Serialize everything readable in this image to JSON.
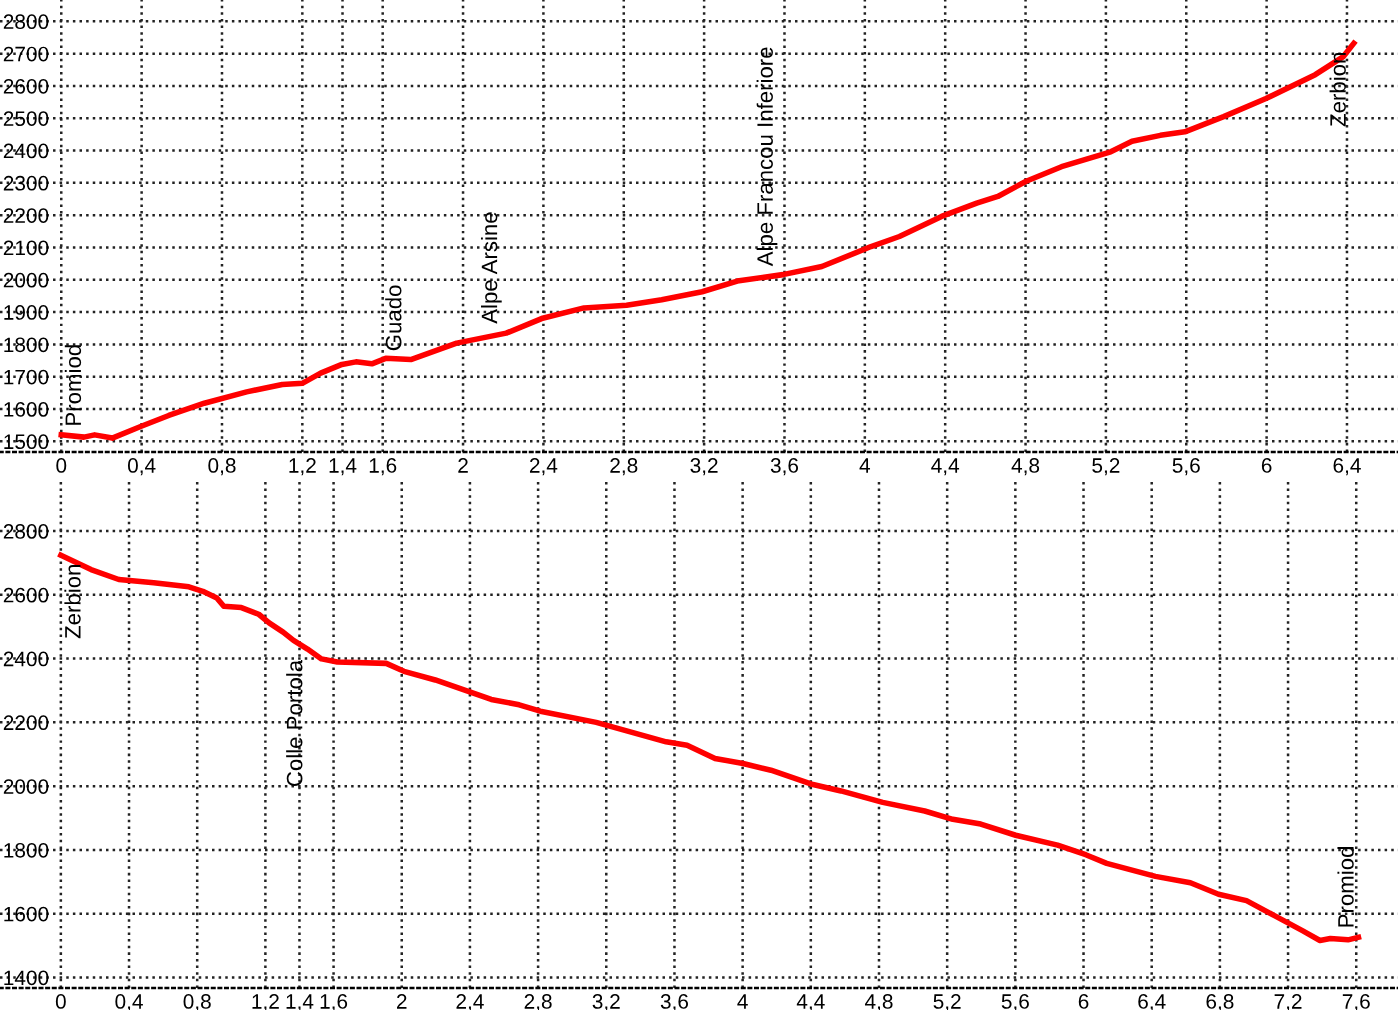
{
  "chart_data": [
    {
      "type": "line",
      "x": [
        0,
        0.113,
        0.166,
        0.254,
        0.395,
        0.535,
        0.712,
        0.923,
        1.1,
        1.202,
        1.291,
        1.397,
        1.467,
        1.546,
        1.615,
        1.74,
        1.968,
        2.215,
        2.391,
        2.602,
        2.814,
        2.989,
        3.19,
        3.365,
        3.592,
        3.786,
        4.031,
        4.172,
        4.382,
        4.557,
        4.662,
        4.803,
        4.979,
        5.224,
        5.33,
        5.471,
        5.593,
        5.786,
        5.997,
        6.242,
        6.382,
        6.434
      ],
      "series": [
        {
          "color": "#ff0000",
          "values": [
            1520,
            1513,
            1520,
            1510,
            1546,
            1580,
            1618,
            1653,
            1676,
            1680,
            1711,
            1738,
            1746,
            1740,
            1757,
            1753,
            1804,
            1835,
            1880,
            1913,
            1921,
            1938,
            1963,
            1996,
            2016,
            2041,
            2103,
            2134,
            2196,
            2237,
            2258,
            2305,
            2350,
            2396,
            2429,
            2447,
            2458,
            2505,
            2561,
            2635,
            2691,
            2732
          ]
        }
      ],
      "xlim": [
        -0.305,
        6.654
      ],
      "ylim": [
        1467,
        2866
      ],
      "xticks": [
        0,
        {
          "value": 0.4,
          "label": "0,4"
        },
        {
          "value": 0.8,
          "label": "0,8"
        },
        {
          "value": 1.2,
          "label": "1,2"
        },
        {
          "value": 1.4,
          "label": "1,4"
        },
        {
          "value": 1.6,
          "label": "1,6"
        },
        2,
        {
          "value": 2.4,
          "label": "2,4"
        },
        {
          "value": 2.8,
          "label": "2,8"
        },
        {
          "value": 3.2,
          "label": "3,2"
        },
        {
          "value": 3.6,
          "label": "3,6"
        },
        4,
        {
          "value": 4.4,
          "label": "4,4"
        },
        {
          "value": 4.8,
          "label": "4,8"
        },
        {
          "value": 5.2,
          "label": "5,2"
        },
        {
          "value": 5.6,
          "label": "5,6"
        },
        6,
        {
          "value": 6.4,
          "label": "6,4"
        }
      ],
      "yticks": [
        1500,
        1600,
        1700,
        1800,
        1900,
        2000,
        2100,
        2200,
        2300,
        2400,
        2500,
        2600,
        2700,
        2800
      ],
      "grid": true,
      "annotations": [
        {
          "text": "Promiod",
          "x": 0,
          "y": 1520
        },
        {
          "text": "Guado",
          "x": 1.733,
          "y": 1753
        },
        {
          "text": "Alpe Arsine",
          "x": 2.21,
          "y": 1838
        },
        {
          "text": "Alpe Francou Inferiore",
          "x": 3.582,
          "y": 2016
        },
        {
          "text": "Zerbion",
          "x": 6.434,
          "y": 2732
        }
      ]
    },
    {
      "type": "line",
      "x": [
        0,
        0.177,
        0.34,
        0.545,
        0.751,
        0.833,
        0.915,
        0.956,
        1.059,
        1.161,
        1.222,
        1.304,
        1.365,
        1.447,
        1.529,
        1.622,
        1.909,
        2.013,
        2.197,
        2.525,
        2.689,
        2.813,
        3.141,
        3.551,
        3.674,
        3.838,
        4.002,
        4.166,
        4.413,
        4.577,
        4.822,
        5.068,
        5.233,
        5.397,
        5.602,
        5.848,
        6.013,
        6.136,
        6.422,
        6.627,
        6.792,
        6.956,
        7.12,
        7.284,
        7.387,
        7.448,
        7.552,
        7.613
      ],
      "series": [
        {
          "color": "#ff0000",
          "values": [
            2724,
            2679,
            2648,
            2638,
            2625,
            2611,
            2590,
            2564,
            2560,
            2539,
            2512,
            2483,
            2457,
            2430,
            2399,
            2389,
            2385,
            2360,
            2333,
            2272,
            2255,
            2235,
            2200,
            2139,
            2128,
            2087,
            2071,
            2050,
            2005,
            1985,
            1949,
            1922,
            1896,
            1881,
            1846,
            1815,
            1785,
            1758,
            1717,
            1697,
            1661,
            1641,
            1594,
            1547,
            1516,
            1522,
            1518,
            1526
          ]
        }
      ],
      "xlim": [
        -0.357,
        7.845
      ],
      "ylim": [
        1367,
        2960
      ],
      "xticks": [
        0,
        {
          "value": 0.4,
          "label": "0,4"
        },
        {
          "value": 0.8,
          "label": "0,8"
        },
        {
          "value": 1.2,
          "label": "1,2"
        },
        {
          "value": 1.4,
          "label": "1,4"
        },
        {
          "value": 1.6,
          "label": "1,6"
        },
        2,
        {
          "value": 2.4,
          "label": "2,4"
        },
        {
          "value": 2.8,
          "label": "2,8"
        },
        {
          "value": 3.2,
          "label": "3,2"
        },
        {
          "value": 3.6,
          "label": "3,6"
        },
        4,
        {
          "value": 4.4,
          "label": "4,4"
        },
        {
          "value": 4.8,
          "label": "4,8"
        },
        {
          "value": 5.2,
          "label": "5,2"
        },
        {
          "value": 5.6,
          "label": "5,6"
        },
        6,
        {
          "value": 6.4,
          "label": "6,4"
        },
        {
          "value": 6.8,
          "label": "6,8"
        },
        {
          "value": 7.2,
          "label": "7,2"
        },
        {
          "value": 7.6,
          "label": "7,6"
        }
      ],
      "yticks": [
        1400,
        1600,
        1800,
        2000,
        2200,
        2400,
        2600,
        2800
      ],
      "grid": true,
      "annotations": [
        {
          "text": "Zerbion",
          "x": 0,
          "y": 2724
        },
        {
          "text": "Colle Portola",
          "x": 1.464,
          "y": 2422
        },
        {
          "text": "Promiod",
          "x": 7.632,
          "y": 1528
        }
      ]
    }
  ]
}
